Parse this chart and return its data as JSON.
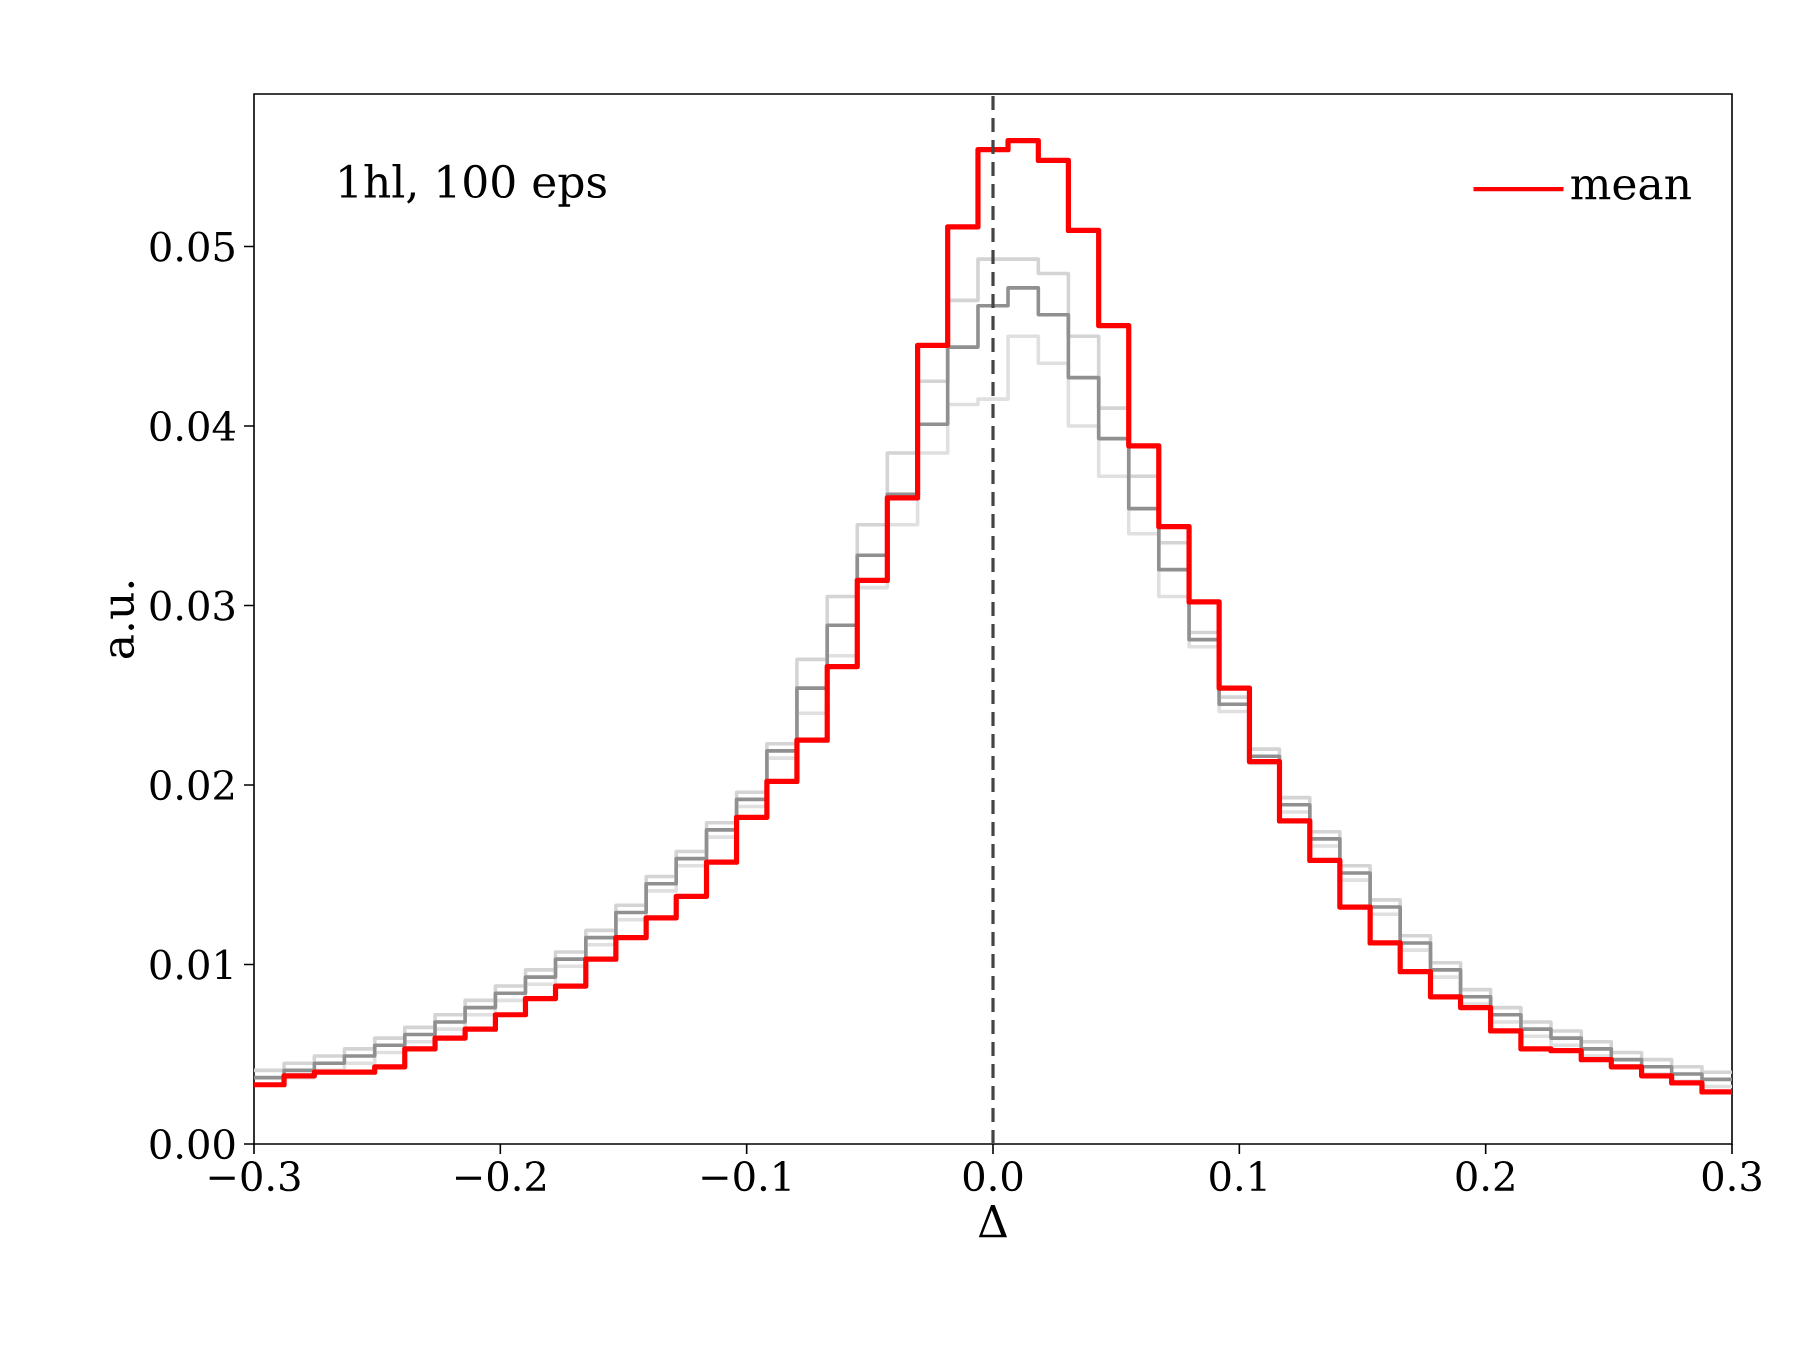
{
  "chart_data": {
    "type": "histogram",
    "xlabel": "Δ",
    "ylabel": "a.u.",
    "annotations": [
      "1hl, 100 eps"
    ],
    "bins": [
      -0.3,
      -0.2878,
      -0.2755,
      -0.2633,
      -0.251,
      -0.2388,
      -0.2265,
      -0.2143,
      -0.202,
      -0.1898,
      -0.1776,
      -0.1653,
      -0.1531,
      -0.1408,
      -0.1286,
      -0.1163,
      -0.1041,
      -0.0918,
      -0.0796,
      -0.0673,
      -0.0551,
      -0.0429,
      -0.0306,
      -0.0184,
      -0.0061,
      0.0061,
      0.0184,
      0.0306,
      0.0429,
      0.0551,
      0.0673,
      0.0796,
      0.0918,
      0.1041,
      0.1163,
      0.1286,
      0.1408,
      0.1531,
      0.1653,
      0.1776,
      0.1898,
      0.202,
      0.2143,
      0.2265,
      0.2388,
      0.251,
      0.2633,
      0.2755,
      0.2878,
      0.3
    ],
    "series": [
      {
        "color": "#d4d4d4",
        "values": [
          0.0041,
          0.0045,
          0.0049,
          0.0053,
          0.0059,
          0.0065,
          0.0072,
          0.008,
          0.0088,
          0.0097,
          0.0107,
          0.0119,
          0.0133,
          0.0149,
          0.0163,
          0.0179,
          0.0196,
          0.0223,
          0.027,
          0.0305,
          0.0345,
          0.0385,
          0.0425,
          0.047,
          0.0493,
          0.0493,
          0.0485,
          0.045,
          0.041,
          0.0372,
          0.0335,
          0.0285,
          0.0249,
          0.022,
          0.0193,
          0.0174,
          0.0155,
          0.0136,
          0.0116,
          0.0101,
          0.0086,
          0.0076,
          0.0068,
          0.0063,
          0.0057,
          0.0051,
          0.0047,
          0.0043,
          0.004
        ]
      },
      {
        "color": "#e0e0e0",
        "values": [
          0.0033,
          0.0037,
          0.0041,
          0.0045,
          0.0051,
          0.0057,
          0.0064,
          0.0072,
          0.008,
          0.0089,
          0.0099,
          0.0111,
          0.0125,
          0.0141,
          0.0155,
          0.0171,
          0.0188,
          0.0215,
          0.024,
          0.0272,
          0.031,
          0.0345,
          0.0385,
          0.0412,
          0.0415,
          0.045,
          0.0435,
          0.04,
          0.0372,
          0.034,
          0.0305,
          0.0277,
          0.0241,
          0.0212,
          0.0185,
          0.0166,
          0.0147,
          0.0128,
          0.0108,
          0.0093,
          0.0078,
          0.0068,
          0.006,
          0.0055,
          0.0049,
          0.0043,
          0.0039,
          0.0035,
          0.0032
        ]
      },
      {
        "color": "#909090",
        "values": [
          0.0037,
          0.0041,
          0.0045,
          0.0049,
          0.0055,
          0.0061,
          0.0068,
          0.0076,
          0.0084,
          0.0093,
          0.0103,
          0.0115,
          0.0129,
          0.0145,
          0.0159,
          0.0175,
          0.0192,
          0.0219,
          0.0254,
          0.0289,
          0.0328,
          0.0362,
          0.0401,
          0.0444,
          0.0467,
          0.0477,
          0.0462,
          0.0427,
          0.0393,
          0.0354,
          0.032,
          0.0281,
          0.0245,
          0.0216,
          0.0189,
          0.017,
          0.0151,
          0.0132,
          0.0112,
          0.0097,
          0.0082,
          0.0072,
          0.0064,
          0.0059,
          0.0053,
          0.0047,
          0.0043,
          0.0039,
          0.0036
        ]
      },
      {
        "name": "mean",
        "color": "#ff0000",
        "values": [
          0.0033,
          0.0038,
          0.004,
          0.004,
          0.0043,
          0.0053,
          0.0059,
          0.0064,
          0.0072,
          0.0081,
          0.0088,
          0.0103,
          0.0115,
          0.0126,
          0.0138,
          0.0157,
          0.0182,
          0.0202,
          0.0225,
          0.0266,
          0.0314,
          0.036,
          0.0445,
          0.0511,
          0.0554,
          0.0559,
          0.0548,
          0.0509,
          0.0456,
          0.0389,
          0.0344,
          0.0302,
          0.0254,
          0.0213,
          0.018,
          0.0158,
          0.0132,
          0.0112,
          0.0096,
          0.0082,
          0.0076,
          0.0063,
          0.0053,
          0.0052,
          0.0047,
          0.0043,
          0.0038,
          0.0034,
          0.0029
        ]
      }
    ],
    "xlim": [
      -0.3,
      0.3
    ],
    "xticks": [
      {
        "value": -0.3,
        "label": "−0.3"
      },
      {
        "value": -0.2,
        "label": "−0.2"
      },
      {
        "value": -0.1,
        "label": "−0.1"
      },
      {
        "value": 0,
        "label": "0.0"
      },
      0.1,
      0.2,
      0.3
    ],
    "ylim": [
      0,
      0.0585
    ],
    "yticks": [
      {
        "value": 0,
        "label": "0.00"
      },
      0.01,
      0.02,
      0.03,
      0.04,
      0.05
    ],
    "ref_lines": [
      {
        "axis": "x",
        "value": 0,
        "color": "#444444",
        "line_style": "dashed"
      }
    ],
    "legend": "top right",
    "grid": false
  }
}
